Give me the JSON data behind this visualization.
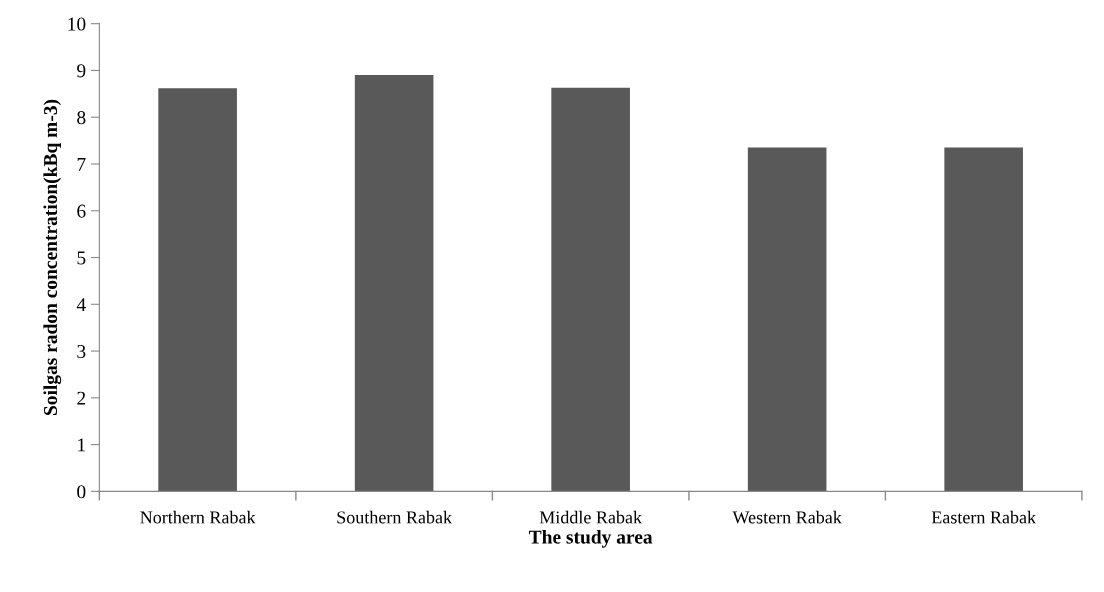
{
  "chart_data": {
    "type": "bar",
    "xlabel": "The study area",
    "ylabel": "Soilgas radon concentration(kBq m-3)",
    "categories": [
      "Northern Rabak",
      "Southern Rabak",
      "Middle Rabak",
      "Western Rabak",
      "Eastern Rabak"
    ],
    "values": [
      8.62,
      8.9,
      8.63,
      7.35,
      7.35
    ],
    "color": "#595959",
    "ylim": [
      0,
      10
    ],
    "yticks": [
      0,
      1,
      2,
      3,
      4,
      5,
      6,
      7,
      8,
      9,
      10
    ],
    "grid": false,
    "legend": false
  }
}
